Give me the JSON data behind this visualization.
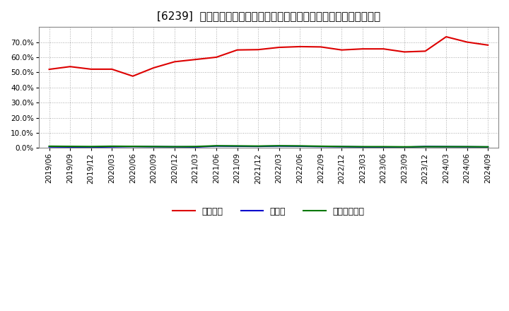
{
  "title": "[6239]  自己資本、のれん、繰延税金資産の総資産に対する比率の推移",
  "x_labels": [
    "2019/06",
    "2019/09",
    "2019/12",
    "2020/03",
    "2020/06",
    "2020/09",
    "2020/12",
    "2021/03",
    "2021/06",
    "2021/09",
    "2021/12",
    "2022/03",
    "2022/06",
    "2022/09",
    "2022/12",
    "2023/03",
    "2023/06",
    "2023/09",
    "2023/12",
    "2024/03",
    "2024/06",
    "2024/09"
  ],
  "jikoshihon": [
    0.52,
    0.538,
    0.521,
    0.521,
    0.475,
    0.53,
    0.57,
    0.585,
    0.6,
    0.648,
    0.65,
    0.665,
    0.67,
    0.668,
    0.648,
    0.655,
    0.655,
    0.635,
    0.64,
    0.735,
    0.7,
    0.68
  ],
  "noren": [
    0.008,
    0.007,
    0.006,
    0.008,
    0.01,
    0.009,
    0.008,
    0.007,
    0.013,
    0.012,
    0.011,
    0.013,
    0.012,
    0.01,
    0.009,
    0.007,
    0.006,
    0.005,
    0.01,
    0.009,
    0.008,
    0.007
  ],
  "kurinobe": [
    0.012,
    0.011,
    0.01,
    0.012,
    0.011,
    0.01,
    0.009,
    0.01,
    0.015,
    0.014,
    0.013,
    0.015,
    0.014,
    0.012,
    0.01,
    0.009,
    0.009,
    0.008,
    0.009,
    0.009,
    0.009,
    0.008
  ],
  "line_colors": {
    "jikoshihon": "#dd0000",
    "noren": "#0000cc",
    "kurinobe": "#007700"
  },
  "legend_labels": {
    "jikoshihon": "自己資本",
    "noren": "のれん",
    "kurinobe": "繰延税金資産"
  },
  "ylim": [
    0.0,
    0.8
  ],
  "yticks": [
    0.0,
    0.1,
    0.2,
    0.3,
    0.4,
    0.5,
    0.6,
    0.7
  ],
  "background_color": "#ffffff",
  "plot_bg_color": "#ffffff",
  "grid_color": "#aaaaaa",
  "title_fontsize": 11,
  "tick_fontsize": 7.5,
  "legend_fontsize": 9
}
